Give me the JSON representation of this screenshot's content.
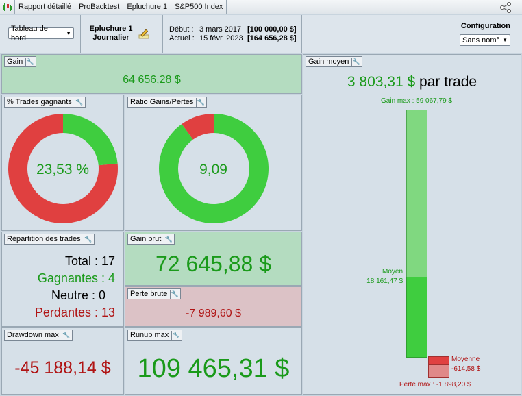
{
  "tabs": [
    "Rapport détaillé",
    "ProBacktest",
    "Epluchure 1",
    "S&P500 Index"
  ],
  "header": {
    "view_select": "Tableau de bord",
    "strategy_name": "Epluchure 1",
    "timeframe": "Journalier",
    "start_label": "Début :",
    "start_date": "3 mars 2017",
    "start_value": "[100 000,00 $]",
    "current_label": "Actuel :",
    "current_date": "15 févr. 2023",
    "current_value": "[164 656,28 $]",
    "config_label": "Configuration",
    "config_select": "Sans nom°"
  },
  "panels": {
    "gain": {
      "title": "Gain",
      "value": "64 656,28 $"
    },
    "win_rate": {
      "title": "% Trades gagnants",
      "value": "23,53 %",
      "fraction": 0.2353
    },
    "gain_loss_ratio": {
      "title": "Ratio Gains/Pertes",
      "value": "9,09",
      "fraction": 0.9009
    },
    "distribution": {
      "title": "Répartition des trades",
      "total_label": "Total : 17",
      "winners_label": "Gagnantes : 4",
      "neutral_label": "Neutre : 0",
      "losers_label": "Perdantes : 13"
    },
    "gross_gain": {
      "title": "Gain brut",
      "value": "72 645,88 $"
    },
    "gross_loss": {
      "title": "Perte brute",
      "value": "-7 989,60 $"
    },
    "drawdown": {
      "title": "Drawdown max",
      "value": "-45 188,14 $"
    },
    "runup": {
      "title": "Runup max",
      "value": "109 465,31 $"
    },
    "avg_gain": {
      "title": "Gain moyen",
      "value": "3 803,31 $",
      "suffix": "par trade",
      "max_gain_label": "Gain max : 59 067,79 $",
      "mean_label": "Moyen",
      "mean_value": "18 161,47 $",
      "avg_loss_label": "Moyenne",
      "avg_loss_value": "-614,58 $",
      "max_loss_label": "Perte max : -1 898,20 $"
    }
  },
  "colors": {
    "green": "#3fcd3f",
    "red": "#e04040",
    "light_green": "#80d880",
    "light_red": "#e08888"
  }
}
